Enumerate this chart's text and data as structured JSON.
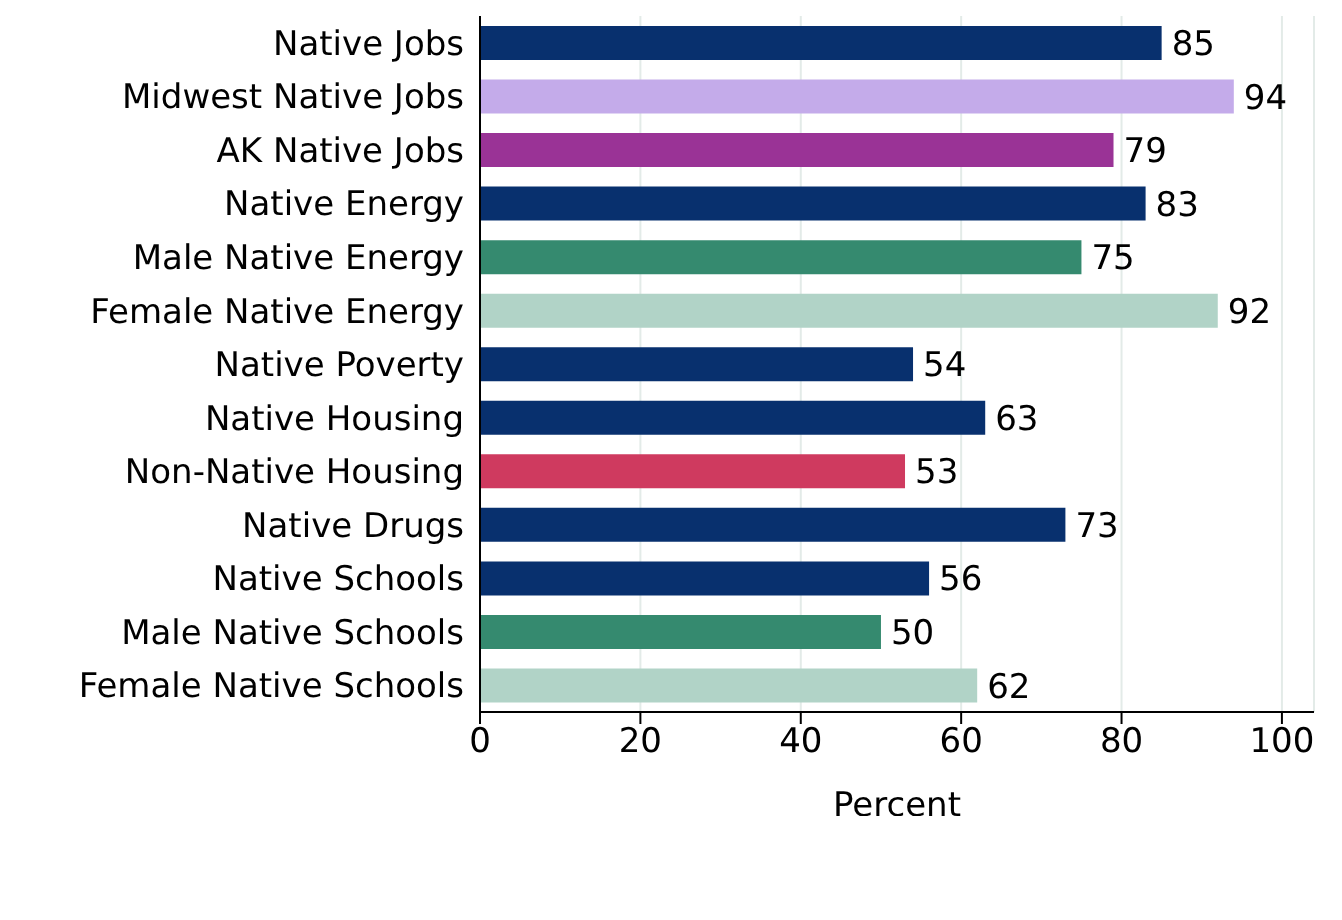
{
  "chart_data": {
    "type": "bar",
    "orientation": "horizontal",
    "xlabel": "Percent",
    "categories": [
      "Native Jobs",
      "Midwest Native Jobs",
      "AK Native Jobs",
      "Native Energy",
      "Male Native Energy",
      "Female Native Energy",
      "Native Poverty",
      "Native Housing",
      "Non-Native Housing",
      "Native Drugs",
      "Native Schools",
      "Male Native Schools",
      "Female Native Schools"
    ],
    "values": [
      85,
      94,
      79,
      83,
      75,
      92,
      54,
      63,
      53,
      73,
      56,
      50,
      62
    ],
    "colors": [
      "#08306e",
      "#c4abea",
      "#9a3396",
      "#08306e",
      "#358a6f",
      "#b1d3c7",
      "#08306e",
      "#08306e",
      "#cf3a5f",
      "#08306e",
      "#08306e",
      "#358a6f",
      "#b1d3c7"
    ],
    "xlim": [
      0,
      104
    ],
    "xticks": [
      0,
      20,
      40,
      60,
      80,
      100
    ],
    "grid": "x",
    "data_labels": true
  }
}
